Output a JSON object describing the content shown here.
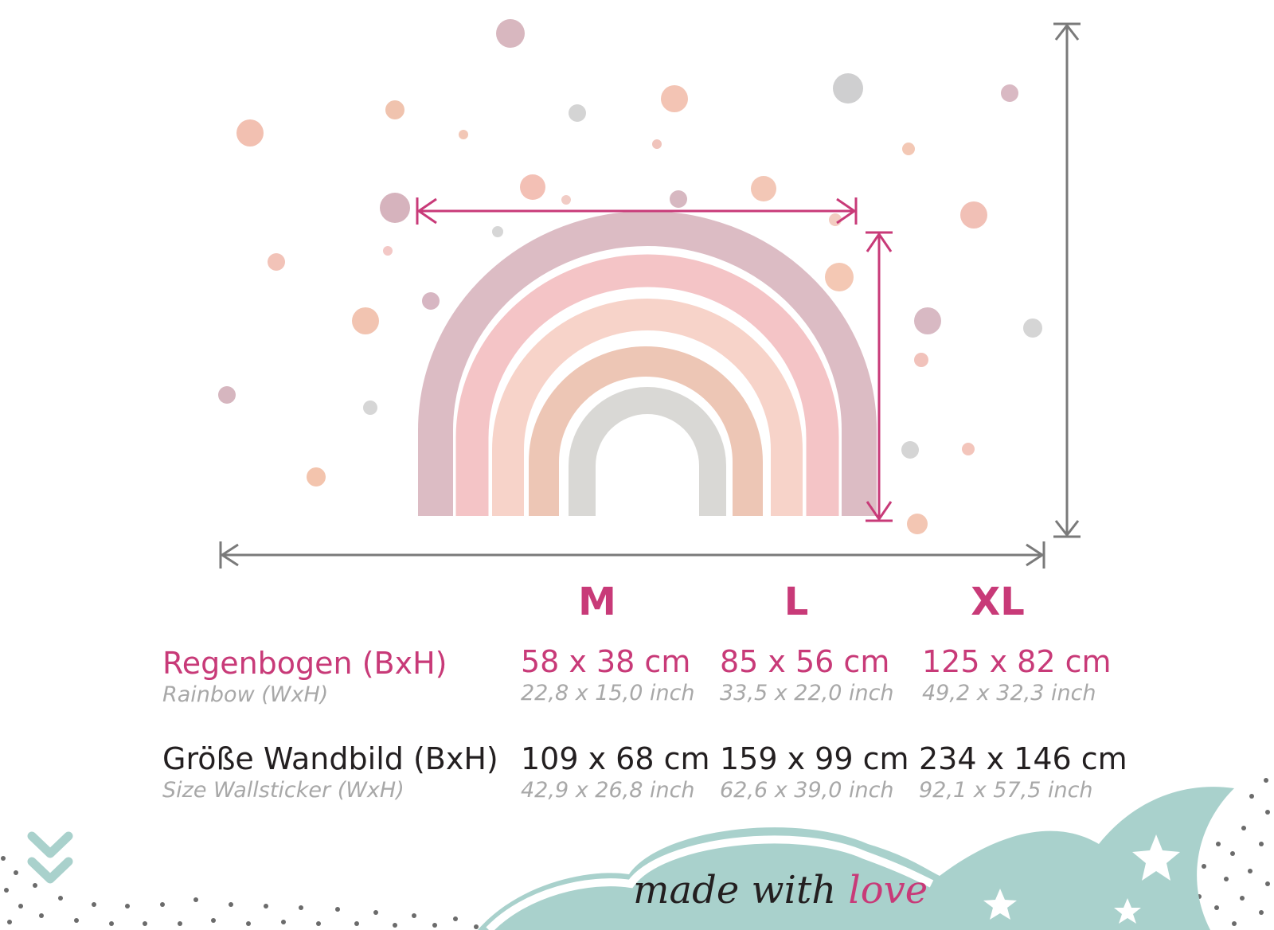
{
  "sizes": {
    "headers": [
      "M",
      "L",
      "XL"
    ]
  },
  "rows": {
    "rainbow": {
      "label": "Regenbogen (BxH)",
      "label_en": "Rainbow (WxH)",
      "values_cm": [
        "58 x 38 cm",
        "85 x 56 cm",
        "125 x 82 cm"
      ],
      "values_inch": [
        "22,8 x 15,0 inch",
        "33,5 x 22,0 inch",
        "49,2 x 32,3 inch"
      ]
    },
    "wallsticker": {
      "label": "Größe Wandbild (BxH)",
      "label_en": "Size Wallsticker (WxH)",
      "values_cm": [
        "109 x 68 cm",
        "159 x 99 cm",
        "234 x 146 cm"
      ],
      "values_inch": [
        "42,9 x 26,8 inch",
        "62,6 x 39,0 inch",
        "92,1 x 57,5 inch"
      ]
    }
  },
  "footer": {
    "brand_part1": "made with ",
    "brand_part2": "love"
  },
  "colors": {
    "accent": "#c83a78",
    "text": "#231f20",
    "muted": "#a8a8a8",
    "cloud": "#a9d1cc",
    "measure_gray": "#7a7a7a"
  },
  "icons": [
    "chevron-down-double-icon",
    "star-icon"
  ]
}
